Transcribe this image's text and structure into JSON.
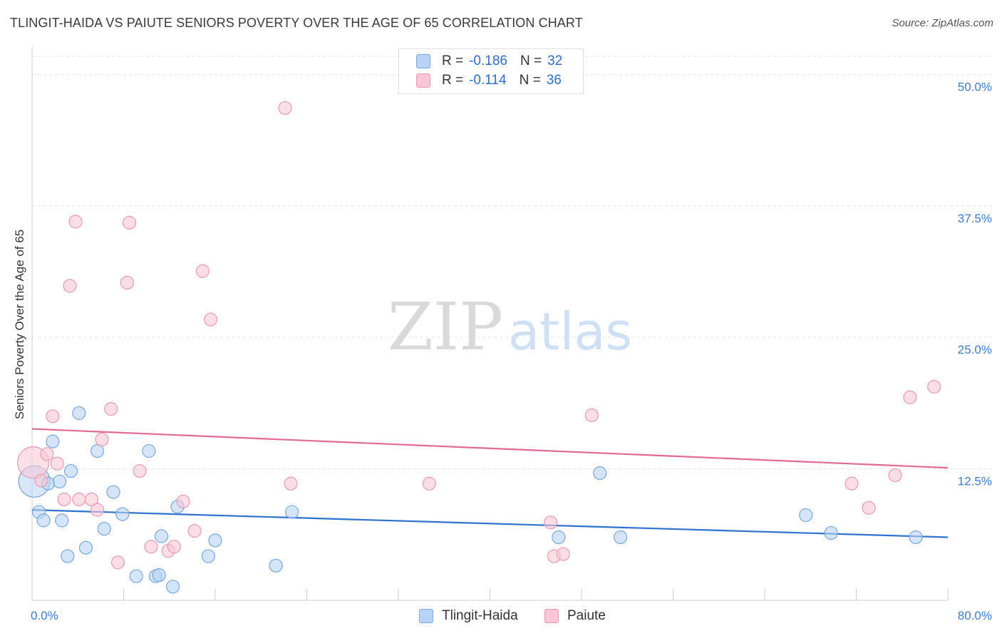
{
  "title": "TLINGIT-HAIDA VS PAIUTE SENIORS POVERTY OVER THE AGE OF 65 CORRELATION CHART",
  "source": "Source: ZipAtlas.com",
  "watermark": {
    "zip": "ZIP",
    "atlas": "atlas"
  },
  "legend": {
    "tlingit": {
      "r_label": "R =",
      "r_value": "-0.186",
      "n_label": "N =",
      "n_value": "32"
    },
    "paiute": {
      "r_label": "R =",
      "r_value": "-0.114",
      "n_label": "N =",
      "n_value": "36"
    }
  },
  "bottom_legend": {
    "tlingit": "Tlingit-Haida",
    "paiute": "Paiute"
  },
  "colors": {
    "tlingit_fill": "#b8d3f5",
    "tlingit_stroke": "#7aa7e0",
    "tlingit_line": "#2f72d0",
    "paiute_fill": "#f9c6d6",
    "paiute_stroke": "#e99ab4",
    "paiute_line": "#e46a95",
    "tick_label": "#3b7dd8"
  },
  "chart_data": {
    "type": "scatter",
    "title": "TLINGIT-HAIDA VS PAIUTE SENIORS POVERTY OVER THE AGE OF 65 CORRELATION CHART",
    "xlabel": "",
    "ylabel": "Seniors Poverty Over the Age of 65",
    "xlim": [
      0,
      80
    ],
    "ylim": [
      0,
      50
    ],
    "x_tick_labels": [
      "0.0%",
      "80.0%"
    ],
    "y_ticks": [
      12.5,
      25.0,
      37.5,
      50.0
    ],
    "y_tick_labels": [
      "12.5%",
      "25.0%",
      "37.5%",
      "50.0%"
    ],
    "grid": true,
    "legend_position": "top-center",
    "series": [
      {
        "name": "Tlingit-Haida",
        "r": -0.186,
        "n": 32,
        "trend": {
          "x": [
            0,
            80
          ],
          "y": [
            8.6,
            6.0
          ]
        },
        "points": [
          {
            "x": 0.2,
            "y": 11.3,
            "big": true
          },
          {
            "x": 0.6,
            "y": 8.4
          },
          {
            "x": 1.0,
            "y": 7.6
          },
          {
            "x": 1.4,
            "y": 11.1
          },
          {
            "x": 1.8,
            "y": 15.1
          },
          {
            "x": 2.4,
            "y": 11.3
          },
          {
            "x": 2.6,
            "y": 7.6
          },
          {
            "x": 3.1,
            "y": 4.2
          },
          {
            "x": 3.4,
            "y": 12.3
          },
          {
            "x": 4.1,
            "y": 17.8
          },
          {
            "x": 4.7,
            "y": 5.0
          },
          {
            "x": 5.7,
            "y": 14.2
          },
          {
            "x": 6.3,
            "y": 6.8
          },
          {
            "x": 7.1,
            "y": 10.3
          },
          {
            "x": 7.9,
            "y": 8.2
          },
          {
            "x": 9.1,
            "y": 2.3
          },
          {
            "x": 10.2,
            "y": 14.2
          },
          {
            "x": 10.8,
            "y": 2.3
          },
          {
            "x": 11.1,
            "y": 2.4
          },
          {
            "x": 11.3,
            "y": 6.1
          },
          {
            "x": 12.3,
            "y": 1.3
          },
          {
            "x": 12.7,
            "y": 8.9
          },
          {
            "x": 15.4,
            "y": 4.2
          },
          {
            "x": 16.0,
            "y": 5.7
          },
          {
            "x": 21.3,
            "y": 3.3
          },
          {
            "x": 22.7,
            "y": 8.4
          },
          {
            "x": 46.0,
            "y": 6.0
          },
          {
            "x": 49.6,
            "y": 12.1
          },
          {
            "x": 51.4,
            "y": 6.0
          },
          {
            "x": 67.6,
            "y": 8.1
          },
          {
            "x": 69.8,
            "y": 6.4
          },
          {
            "x": 77.2,
            "y": 6.0
          }
        ]
      },
      {
        "name": "Paiute",
        "r": -0.114,
        "n": 36,
        "trend": {
          "x": [
            0,
            80
          ],
          "y": [
            16.3,
            12.6
          ]
        },
        "points": [
          {
            "x": 0.1,
            "y": 13.1,
            "big": true
          },
          {
            "x": 0.8,
            "y": 11.4
          },
          {
            "x": 1.3,
            "y": 13.9
          },
          {
            "x": 1.8,
            "y": 17.5
          },
          {
            "x": 2.2,
            "y": 13.0
          },
          {
            "x": 2.8,
            "y": 9.6
          },
          {
            "x": 3.3,
            "y": 29.9
          },
          {
            "x": 3.8,
            "y": 36.0
          },
          {
            "x": 4.1,
            "y": 9.6
          },
          {
            "x": 5.2,
            "y": 9.6
          },
          {
            "x": 5.7,
            "y": 8.6
          },
          {
            "x": 6.1,
            "y": 15.3
          },
          {
            "x": 6.9,
            "y": 18.2
          },
          {
            "x": 7.5,
            "y": 3.6
          },
          {
            "x": 8.3,
            "y": 30.2
          },
          {
            "x": 8.5,
            "y": 35.9
          },
          {
            "x": 9.4,
            "y": 12.3
          },
          {
            "x": 10.4,
            "y": 5.1
          },
          {
            "x": 11.9,
            "y": 4.7
          },
          {
            "x": 12.4,
            "y": 5.1
          },
          {
            "x": 13.2,
            "y": 9.4
          },
          {
            "x": 14.2,
            "y": 6.6
          },
          {
            "x": 14.9,
            "y": 31.3
          },
          {
            "x": 15.6,
            "y": 26.7
          },
          {
            "x": 22.1,
            "y": 46.8
          },
          {
            "x": 22.6,
            "y": 11.1
          },
          {
            "x": 34.7,
            "y": 11.1
          },
          {
            "x": 45.3,
            "y": 7.4
          },
          {
            "x": 45.6,
            "y": 4.2
          },
          {
            "x": 46.4,
            "y": 4.4
          },
          {
            "x": 48.9,
            "y": 17.6
          },
          {
            "x": 71.6,
            "y": 11.1
          },
          {
            "x": 73.1,
            "y": 8.8
          },
          {
            "x": 75.4,
            "y": 11.9
          },
          {
            "x": 76.7,
            "y": 19.3
          },
          {
            "x": 78.8,
            "y": 20.3
          }
        ]
      }
    ]
  }
}
